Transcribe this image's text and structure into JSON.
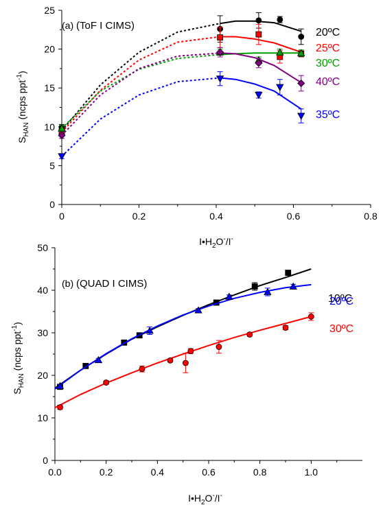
{
  "chart_data": [
    {
      "type": "scatter",
      "panel_label": "(a)",
      "title": "(ToF I  CIMS)",
      "ylabel_main": "S",
      "ylabel_sub": "HAN",
      "ylabel_rest": " (ncps ppt",
      "ylabel_sup": "-1",
      "ylabel_close": ")",
      "xlabel_parts": [
        "I•H",
        "2",
        "O",
        "-",
        "/I",
        "-"
      ],
      "xlim": [
        0,
        0.8
      ],
      "ylim": [
        0,
        25
      ],
      "x_ticks": [
        "0",
        "0.2",
        "0.4",
        "0.6",
        "0.8"
      ],
      "y_ticks": [
        "0",
        "5",
        "10",
        "15",
        "20",
        "25"
      ],
      "series": [
        {
          "name": "20ºC",
          "color": "#000000",
          "marker": "circle",
          "points": [
            [
              0,
              9.9,
              0.4
            ],
            [
              0.41,
              22.6,
              1.7
            ],
            [
              0.51,
              23.7,
              1.0
            ],
            [
              0.565,
              23.8,
              0.4
            ],
            [
              0.62,
              21.6,
              1.0
            ]
          ],
          "fit_dash": [
            [
              0,
              9.5
            ],
            [
              0.1,
              15.4
            ],
            [
              0.2,
              19.6
            ],
            [
              0.3,
              22.2
            ],
            [
              0.41,
              23.3
            ]
          ],
          "fit_solid": [
            [
              0.41,
              23.3
            ],
            [
              0.45,
              23.6
            ],
            [
              0.5,
              23.6
            ],
            [
              0.55,
              23.4
            ],
            [
              0.62,
              22.3
            ]
          ]
        },
        {
          "name": "25ºC",
          "color": "#ff0000",
          "marker": "square",
          "points": [
            [
              0,
              9.4,
              0.4
            ],
            [
              0.41,
              21.5,
              1.3
            ],
            [
              0.51,
              21.9,
              1.3
            ],
            [
              0.565,
              19.0,
              0.8
            ],
            [
              0.62,
              19.4,
              0.4
            ]
          ],
          "fit_dash": [
            [
              0,
              9.3
            ],
            [
              0.1,
              14.7
            ],
            [
              0.2,
              18.6
            ],
            [
              0.3,
              20.9
            ],
            [
              0.41,
              21.6
            ]
          ],
          "fit_solid": [
            [
              0.41,
              21.6
            ],
            [
              0.45,
              21.6
            ],
            [
              0.5,
              21.3
            ],
            [
              0.55,
              20.8
            ],
            [
              0.62,
              19.6
            ]
          ]
        },
        {
          "name": "30ºC",
          "color": "#00a000",
          "marker": "triangle-up",
          "points": [
            [
              0,
              9.8,
              0.4
            ],
            [
              0.41,
              19.6,
              0.4
            ],
            [
              0.51,
              18.6,
              0.4
            ],
            [
              0.565,
              19.6,
              0.4
            ],
            [
              0.62,
              19.5,
              0.4
            ]
          ],
          "fit_dash": [
            [
              0,
              9.8
            ],
            [
              0.1,
              14.6
            ],
            [
              0.2,
              17.4
            ],
            [
              0.3,
              18.8
            ],
            [
              0.41,
              19.3
            ]
          ],
          "fit_solid": [
            [
              0.41,
              19.3
            ],
            [
              0.45,
              19.4
            ],
            [
              0.5,
              19.5
            ],
            [
              0.55,
              19.5
            ],
            [
              0.62,
              19.5
            ]
          ]
        },
        {
          "name": "40ºC",
          "color": "#800080",
          "marker": "diamond",
          "points": [
            [
              0,
              8.9,
              0.4
            ],
            [
              0.41,
              19.6,
              0.6
            ],
            [
              0.51,
              18.2,
              0.6
            ],
            [
              0.62,
              15.6,
              1.0
            ]
          ],
          "fit_dash": [
            [
              0,
              8.9
            ],
            [
              0.1,
              14.1
            ],
            [
              0.2,
              17.5
            ],
            [
              0.3,
              19.1
            ],
            [
              0.41,
              19.5
            ]
          ],
          "fit_solid": [
            [
              0.41,
              19.5
            ],
            [
              0.45,
              19.4
            ],
            [
              0.5,
              18.9
            ],
            [
              0.55,
              17.9
            ],
            [
              0.62,
              15.7
            ]
          ]
        },
        {
          "name": "35ºC",
          "color": "#0000ff",
          "marker": "triangle-down",
          "points": [
            [
              0,
              6.2,
              0.3
            ],
            [
              0.41,
              16.2,
              0.9
            ],
            [
              0.51,
              14.1,
              0.4
            ],
            [
              0.565,
              15.1,
              1.0
            ],
            [
              0.62,
              11.4,
              0.9
            ]
          ],
          "fit_dash": [
            [
              0,
              6.2
            ],
            [
              0.1,
              11.0
            ],
            [
              0.2,
              14.1
            ],
            [
              0.3,
              15.8
            ],
            [
              0.41,
              16.3
            ]
          ],
          "fit_solid": [
            [
              0.41,
              16.3
            ],
            [
              0.45,
              16.1
            ],
            [
              0.5,
              15.5
            ],
            [
              0.55,
              14.6
            ],
            [
              0.62,
              12.3
            ]
          ]
        }
      ]
    },
    {
      "type": "scatter",
      "panel_label": "(b)",
      "title": "(QUAD I  CIMS)",
      "ylabel_main": "S",
      "ylabel_sub": "HAN",
      "ylabel_rest": " (ncps ppt",
      "ylabel_sup": "-1",
      "ylabel_close": ")",
      "xlabel_parts": [
        "I•H",
        "2",
        "O",
        "-",
        "/I",
        "-"
      ],
      "xlim": [
        0,
        1.2
      ],
      "ylim": [
        0,
        50
      ],
      "x_ticks": [
        "0.0",
        "0.2",
        "0.4",
        "0.6",
        "0.8",
        "1.0"
      ],
      "y_ticks": [
        "0",
        "10",
        "20",
        "30",
        "40",
        "50"
      ],
      "series": [
        {
          "name": "10ºC",
          "color": "#000000",
          "marker": "square",
          "points": [
            [
              0.02,
              17.3,
              0.4
            ],
            [
              0.12,
              22.2,
              0.4
            ],
            [
              0.27,
              27.7,
              0.5
            ],
            [
              0.33,
              29.4,
              0.4
            ],
            [
              0.63,
              37.1,
              0.4
            ],
            [
              0.78,
              40.9,
              0.9
            ],
            [
              0.91,
              44.1,
              0.6
            ]
          ],
          "fit_solid": [
            [
              0.0,
              17.0
            ],
            [
              0.1,
              21.2
            ],
            [
              0.2,
              25.0
            ],
            [
              0.3,
              28.5
            ],
            [
              0.4,
              31.4
            ],
            [
              0.5,
              34.1
            ],
            [
              0.6,
              36.6
            ],
            [
              0.7,
              38.9
            ],
            [
              0.8,
              41.1
            ],
            [
              0.9,
              43.0
            ],
            [
              1.0,
              45.0
            ]
          ]
        },
        {
          "name": "20ºC",
          "color": "#0000ff",
          "marker": "triangle-up",
          "points": [
            [
              0.02,
              17.5,
              0.4
            ],
            [
              0.17,
              23.6,
              0.4
            ],
            [
              0.37,
              30.5,
              0.9
            ],
            [
              0.56,
              35.3,
              0.4
            ],
            [
              0.68,
              38.5,
              0.4
            ],
            [
              0.83,
              39.6,
              0.9
            ],
            [
              0.93,
              40.9,
              0.5
            ]
          ],
          "fit_solid": [
            [
              0.0,
              16.8
            ],
            [
              0.1,
              21.2
            ],
            [
              0.2,
              25.1
            ],
            [
              0.3,
              28.6
            ],
            [
              0.4,
              31.6
            ],
            [
              0.5,
              34.2
            ],
            [
              0.6,
              36.3
            ],
            [
              0.7,
              38.1
            ],
            [
              0.8,
              39.5
            ],
            [
              0.9,
              40.6
            ],
            [
              1.0,
              41.3
            ]
          ]
        },
        {
          "name": "30ºC",
          "color": "#ff0000",
          "marker": "circle",
          "points": [
            [
              0.02,
              12.5,
              0.5
            ],
            [
              0.2,
              18.3,
              0.4
            ],
            [
              0.34,
              21.5,
              0.7
            ],
            [
              0.45,
              23.5,
              0.4
            ],
            [
              0.51,
              22.9,
              2.3
            ],
            [
              0.53,
              25.7,
              0.6
            ],
            [
              0.64,
              26.7,
              1.5
            ],
            [
              0.76,
              29.6,
              0.4
            ],
            [
              0.9,
              31.2,
              0.5
            ],
            [
              1.0,
              33.8,
              0.9
            ]
          ],
          "fit_solid": [
            [
              0.0,
              12.4
            ],
            [
              0.1,
              15.5
            ],
            [
              0.2,
              18.2
            ],
            [
              0.3,
              20.6
            ],
            [
              0.4,
              22.9
            ],
            [
              0.5,
              25.0
            ],
            [
              0.6,
              27.0
            ],
            [
              0.7,
              28.9
            ],
            [
              0.8,
              30.6
            ],
            [
              0.9,
              32.2
            ],
            [
              1.0,
              33.8
            ]
          ]
        }
      ]
    }
  ]
}
